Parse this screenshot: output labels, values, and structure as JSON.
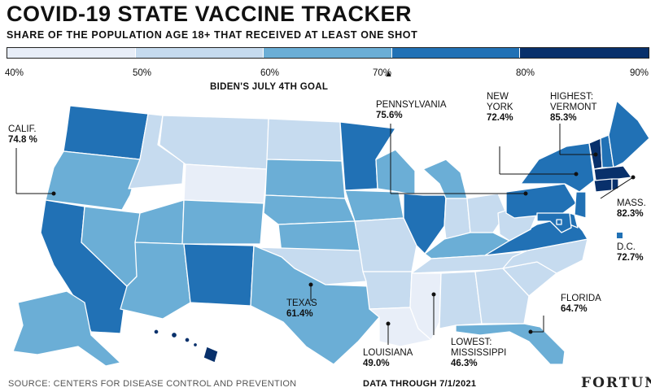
{
  "header": {
    "title": "COVID-19 STATE VACCINE TRACKER",
    "subtitle": "SHARE OF THE POPULATION AGE 18+ THAT RECEIVED AT LEAST ONE SHOT"
  },
  "legend": {
    "ticks": [
      "40%",
      "50%",
      "60%",
      "70%",
      "80%",
      "90%"
    ],
    "bins": [
      {
        "from": 40,
        "to": 50,
        "color": "#e8eef8"
      },
      {
        "from": 50,
        "to": 60,
        "color": "#c6dbef"
      },
      {
        "from": 60,
        "to": 70,
        "color": "#6baed6"
      },
      {
        "from": 70,
        "to": 80,
        "color": "#2171b5"
      },
      {
        "from": 80,
        "to": 90,
        "color": "#08306b"
      }
    ],
    "goal_label": "BIDEN'S JULY 4TH GOAL",
    "goal_value": 70
  },
  "annotations": {
    "calif": {
      "name": "CALIF.",
      "value": "74.8 %"
    },
    "pennsylvania": {
      "name": "PENNSYLVANIA",
      "value": "75.6%"
    },
    "new_york": {
      "name_line1": "NEW",
      "name_line2": "YORK",
      "value": "72.4%"
    },
    "vermont": {
      "name_line1": "HIGHEST:",
      "name_line2": "VERMONT",
      "value": "85.3%"
    },
    "mass": {
      "name": "MASS.",
      "value": "82.3%"
    },
    "dc": {
      "name": "D.C.",
      "value": "72.7%"
    },
    "texas": {
      "name": "TEXAS",
      "value": "61.4%"
    },
    "florida": {
      "name": "FLORIDA",
      "value": "64.7%"
    },
    "louisiana": {
      "name": "LOUISIANA",
      "value": "49.0%"
    },
    "mississippi": {
      "name_line1": "LOWEST:",
      "name_line2": "MISSISSIPPI",
      "value": "46.3%"
    }
  },
  "footer": {
    "source": "SOURCE: CENTERS FOR DISEASE CONTROL AND PREVENTION",
    "data_through": "DATA THROUGH 7/1/2021",
    "brand": "FORTUNE"
  },
  "colors": {
    "bin1": "#e8eef8",
    "bin2": "#c6dbef",
    "bin3": "#6baed6",
    "bin4": "#2171b5",
    "bin5": "#08306b",
    "border": "#ffffff",
    "text": "#111111"
  }
}
